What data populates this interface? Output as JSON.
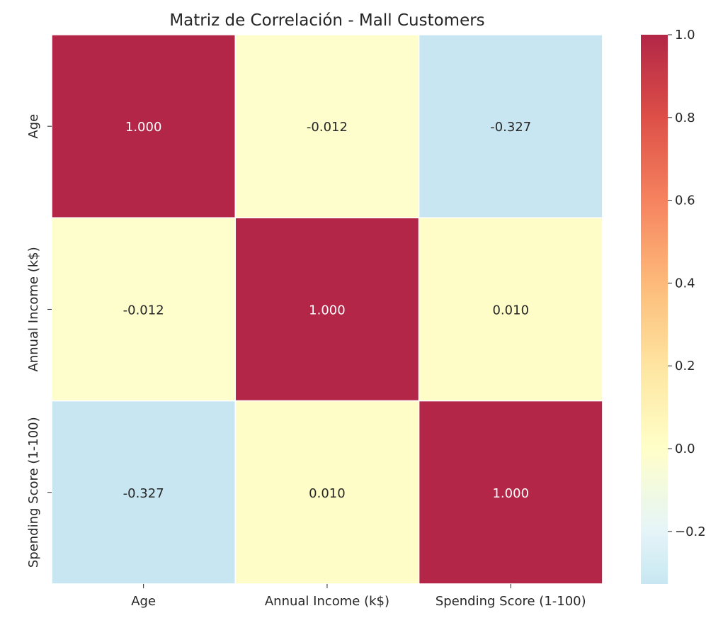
{
  "chart_data": {
    "type": "heatmap",
    "title": "Matriz de Correlación - Mall Customers",
    "xlabel": "",
    "ylabel": "",
    "row_labels": [
      "Age",
      "Annual Income (k$)",
      "Spending Score (1-100)"
    ],
    "col_labels": [
      "Age",
      "Annual Income (k$)",
      "Spending Score (1-100)"
    ],
    "values": [
      [
        1.0,
        -0.012,
        -0.327
      ],
      [
        -0.012,
        1.0,
        0.01
      ],
      [
        -0.327,
        0.01,
        1.0
      ]
    ],
    "annotations": [
      [
        "1.000",
        "-0.012",
        "-0.327"
      ],
      [
        "-0.012",
        "1.000",
        "0.010"
      ],
      [
        "-0.327",
        "0.010",
        "1.000"
      ]
    ],
    "colormap": "RdYlBu_r",
    "vmin": -0.327,
    "vmax": 1.0,
    "colorbar": {
      "ticks": [
        1.0,
        0.8,
        0.6,
        0.4,
        0.2,
        0.0,
        -0.2
      ],
      "tick_labels": [
        "1.0",
        "0.8",
        "0.6",
        "0.4",
        "0.2",
        "0.0",
        "−0.2"
      ],
      "position": "right"
    },
    "colors": {
      "high": "#8b1e2a",
      "neutral": "#fefbc4",
      "low": "#cce2ef",
      "annotation_light": "#ffffff",
      "annotation_dark": "#262626"
    }
  }
}
